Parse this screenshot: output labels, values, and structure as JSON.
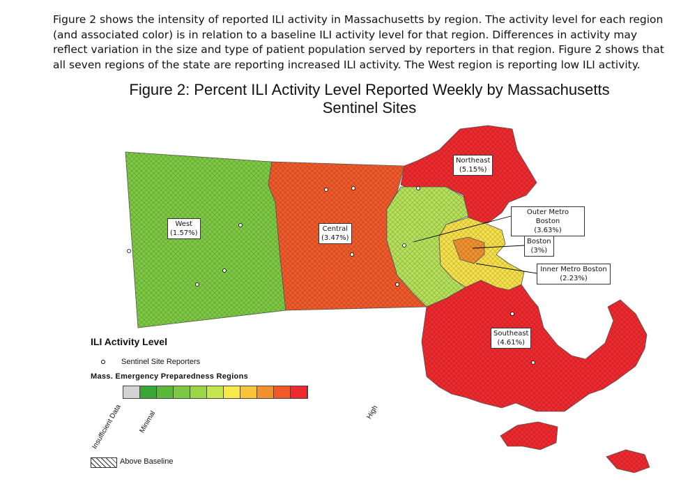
{
  "intro_text": "Figure 2 shows the intensity of reported ILI activity in Massachusetts by region. The activity level for each region (and associated color) is in relation to a baseline ILI activity level for that region.  Differences in activity may reflect variation in the size and type of patient population served by reporters in that region. Figure 2 shows that all seven regions of the state are reporting increased ILI activity. The West region is reporting low ILI activity.",
  "figure_title": "Figure 2: Percent ILI Activity Level Reported Weekly by Massachusetts Sentinel Sites",
  "regions": [
    {
      "name": "West",
      "value": "(1.57%)",
      "color": "#7cc843"
    },
    {
      "name": "Central",
      "value": "(3.47%)",
      "color": "#f05a2a"
    },
    {
      "name": "Northeast",
      "value": "(5.15%)",
      "color": "#ee2a2f"
    },
    {
      "name": "Outer Metro Boston",
      "value": "(3.63%)",
      "color": "#b5e05a"
    },
    {
      "name": "Boston",
      "value": "(3%)",
      "color": "#f0912f"
    },
    {
      "name": "Inner Metro Boston",
      "value": "(2.23%)",
      "color": "#f5e04a"
    },
    {
      "name": "Southeast",
      "value": "(4.61%)",
      "color": "#ee2a2f"
    }
  ],
  "legend": {
    "title": "ILI Activity Level",
    "sentinel_label": "Sentinel Site Reporters",
    "regions_label": "Mass. Emergency Preparedness Regions",
    "scale_colors": [
      "#d3d3d3",
      "#3aa63a",
      "#5cb83c",
      "#7cc843",
      "#9cd648",
      "#c6e650",
      "#f8e84a",
      "#f8c43a",
      "#f0912f",
      "#f05a2a",
      "#ee2a2f"
    ],
    "tick_insufficient": "Insufficient Data",
    "tick_minimal": "Minimal",
    "tick_high": "High",
    "above_baseline": "Above Baseline"
  }
}
